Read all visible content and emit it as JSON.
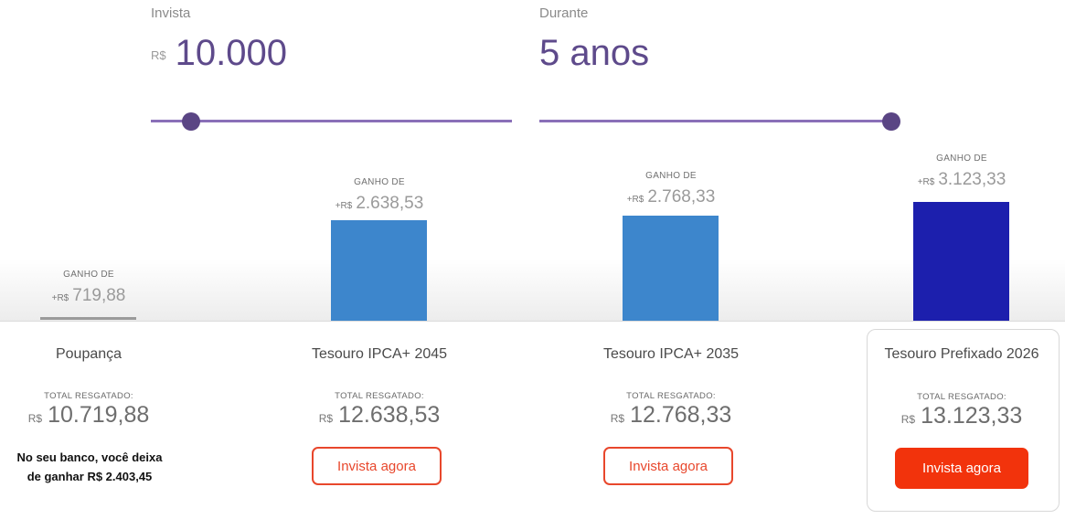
{
  "sliders": [
    {
      "label": "Invista",
      "prefix": "R$",
      "value": "10.000",
      "fraction": 0.11
    },
    {
      "label": "Durante",
      "prefix": "",
      "value": "5 anos",
      "fraction": 1.0
    }
  ],
  "colors": {
    "slider_track": "#8a6fb8",
    "slider_thumb": "#5a4584",
    "bar_savings": "#9a9a9a",
    "bar_ipca": "#3d86cc",
    "bar_prefixado": "#1c1fad",
    "cta_red": "#f2330c"
  },
  "gain_caption": "GANHO DE",
  "gain_prefix": "+R$",
  "total_label": "TOTAL RESGATADO:",
  "total_prefix": "R$",
  "investments": [
    {
      "name": "Poupança",
      "gain": "719,88",
      "gain_value": 719.88,
      "total": "10.719,88",
      "button": null
    },
    {
      "name": "Tesouro IPCA+ 2045",
      "gain": "2.638,53",
      "gain_value": 2638.53,
      "total": "12.638,53",
      "button": "Invista agora"
    },
    {
      "name": "Tesouro IPCA+ 2035",
      "gain": "2.768,33",
      "gain_value": 2768.33,
      "total": "12.768,33",
      "button": "Invista agora"
    },
    {
      "name": "Tesouro Prefixado 2026",
      "gain": "3.123,33",
      "gain_value": 3123.33,
      "total": "13.123,33",
      "button": "Invista agora"
    }
  ],
  "bank_note": {
    "line1": "No seu banco, você deixa",
    "line2": "de ganhar R$ 2.403,45"
  }
}
